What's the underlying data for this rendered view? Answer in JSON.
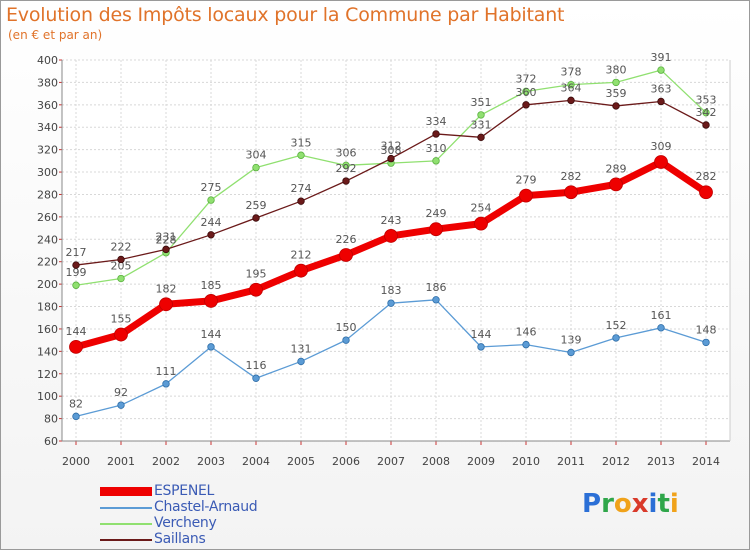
{
  "header": {
    "title": "Evolution des Impôts locaux pour la Commune par Habitant",
    "subtitle": "(en € et par an)"
  },
  "logo": {
    "letters": [
      "P",
      "r",
      "o",
      "x",
      "i",
      "t",
      "i"
    ]
  },
  "chart_data": {
    "type": "line",
    "x": [
      "2000",
      "2001",
      "2002",
      "2003",
      "2004",
      "2005",
      "2006",
      "2007",
      "2008",
      "2009",
      "2010",
      "2011",
      "2012",
      "2013",
      "2014"
    ],
    "ylim": [
      60,
      400
    ],
    "yticks": [
      60,
      80,
      100,
      120,
      140,
      160,
      180,
      200,
      220,
      240,
      260,
      280,
      300,
      320,
      340,
      360,
      380,
      400
    ],
    "grid": true,
    "legend_position": "bottom-left",
    "series": [
      {
        "name": "ESPENEL",
        "color": "#ee0000",
        "emphasis": true,
        "values": [
          144,
          155,
          182,
          185,
          195,
          212,
          226,
          243,
          249,
          254,
          279,
          282,
          289,
          309,
          282
        ]
      },
      {
        "name": "Chastel-Arnaud",
        "color": "#5b9bd5",
        "values": [
          82,
          92,
          111,
          144,
          116,
          131,
          150,
          183,
          186,
          144,
          146,
          139,
          152,
          161,
          148
        ]
      },
      {
        "name": "Vercheny",
        "color": "#90e070",
        "values": [
          199,
          205,
          228,
          275,
          304,
          315,
          306,
          308,
          310,
          351,
          372,
          378,
          380,
          391,
          353
        ]
      },
      {
        "name": "Saillans",
        "color": "#6b1a1a",
        "values": [
          217,
          222,
          231,
          244,
          259,
          274,
          292,
          312,
          334,
          331,
          360,
          364,
          359,
          363,
          342
        ]
      }
    ]
  }
}
